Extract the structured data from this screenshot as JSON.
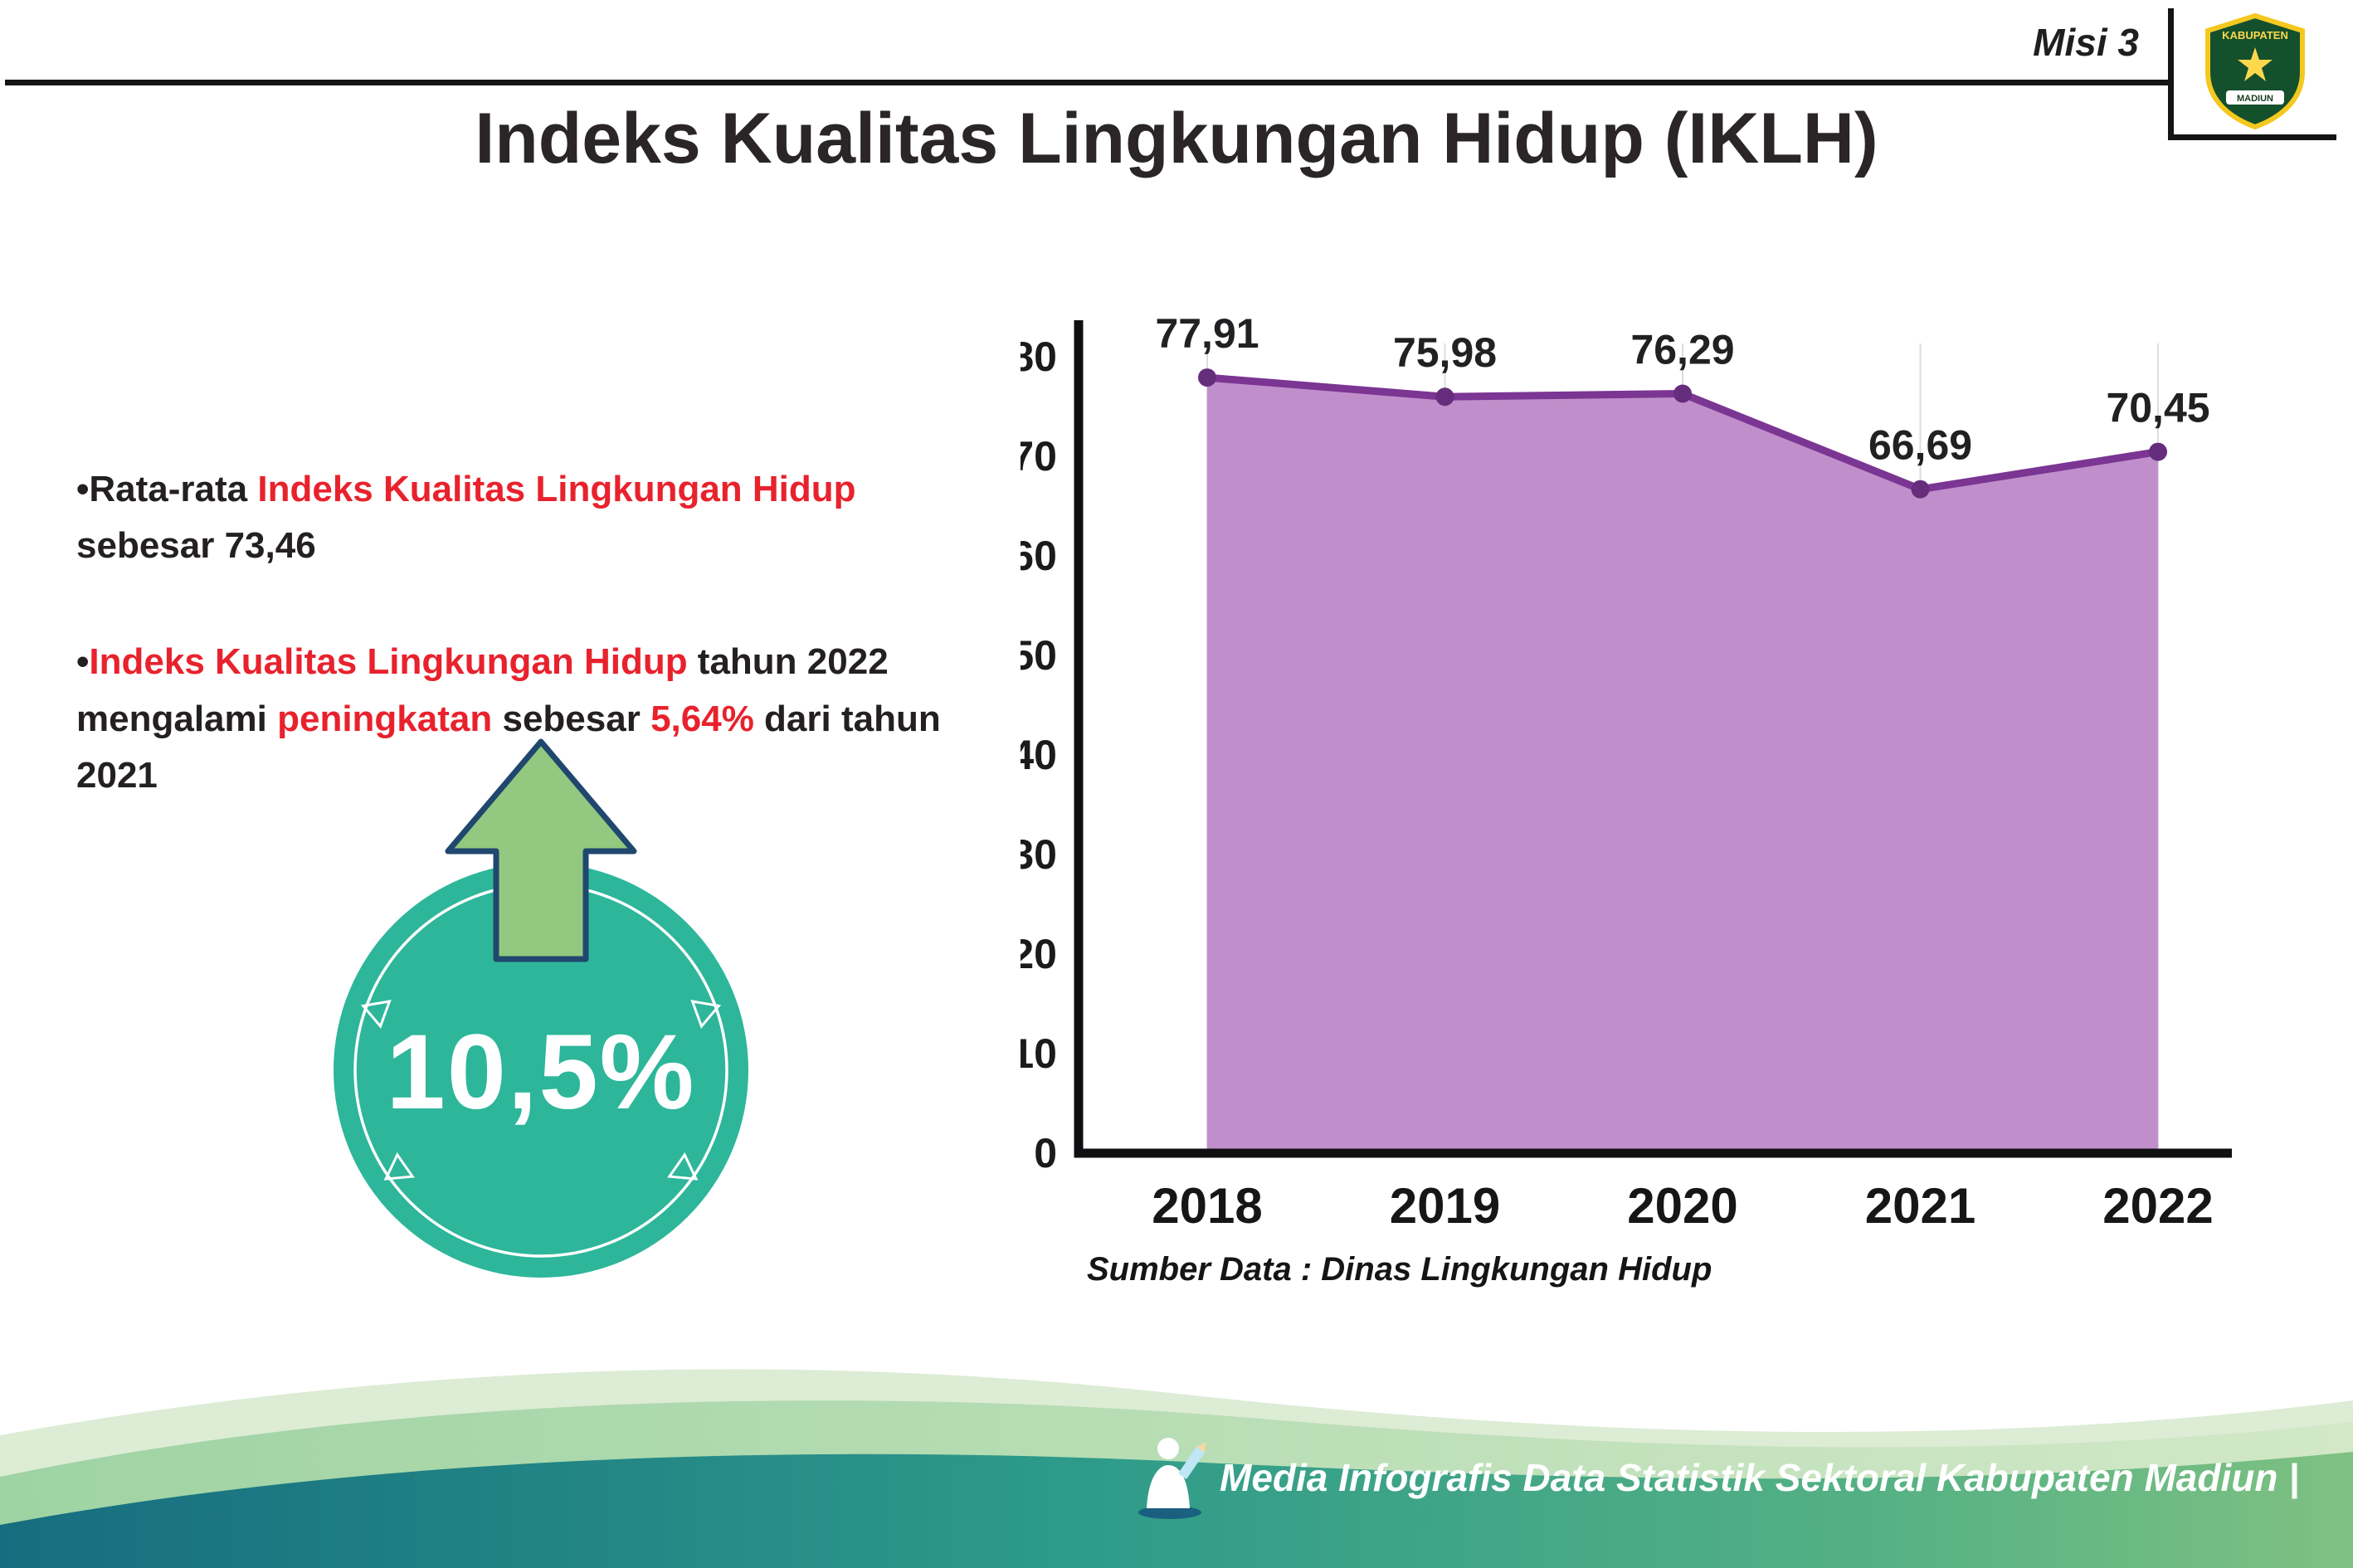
{
  "header": {
    "misi_label": "Misi 3",
    "title": "Indeks Kualitas Lingkungan Hidup (IKLH)",
    "logo": {
      "top_text": "KABUPATEN",
      "bottom_text": "MADIUN"
    }
  },
  "bullet_glyph": "•",
  "bullets": [
    {
      "segments": [
        {
          "text": "Rata-rata ",
          "style": "dark"
        },
        {
          "text": "Indeks Kualitas Lingkungan Hidup",
          "style": "red"
        },
        {
          "text": " sebesar 73,46",
          "style": "dark"
        }
      ]
    },
    {
      "segments": [
        {
          "text": "Indeks Kualitas Lingkungan Hidup",
          "style": "red"
        },
        {
          "text": " tahun 2022 mengalami ",
          "style": "dark"
        },
        {
          "text": "peningkatan",
          "style": "red"
        },
        {
          "text": " sebesar ",
          "style": "dark"
        },
        {
          "text": "5,64%",
          "style": "red"
        },
        {
          "text": " dari tahun 2021",
          "style": "dark"
        }
      ]
    }
  ],
  "badge": {
    "value": "10,5%",
    "circle_color": "#2db69a",
    "arrow_color": "#92c87f",
    "arrow_outline_color": "#20476e"
  },
  "chart_data": {
    "type": "area",
    "title": "Indeks Kualitas Lingkungan Hidup (IKLH)",
    "categories": [
      "2018",
      "2019",
      "2020",
      "2021",
      "2022"
    ],
    "values": [
      77.91,
      75.98,
      76.29,
      66.69,
      70.45
    ],
    "labels": [
      "77,91",
      "75,98",
      "76,29",
      "66,69",
      "70,45"
    ],
    "xlabel": "",
    "ylabel": "",
    "ylim": [
      0,
      80
    ],
    "ytick_step": 10,
    "grid": true,
    "legend": "none",
    "area_color": "#c08fcb",
    "line_color": "#7b3593",
    "marker_color": "#662d7d",
    "source_label": "Sumber Data : Dinas Lingkungan Hidup"
  },
  "footer": {
    "text": "Media Infografis Data Statistik Sektoral Kabupaten Madiun |"
  }
}
